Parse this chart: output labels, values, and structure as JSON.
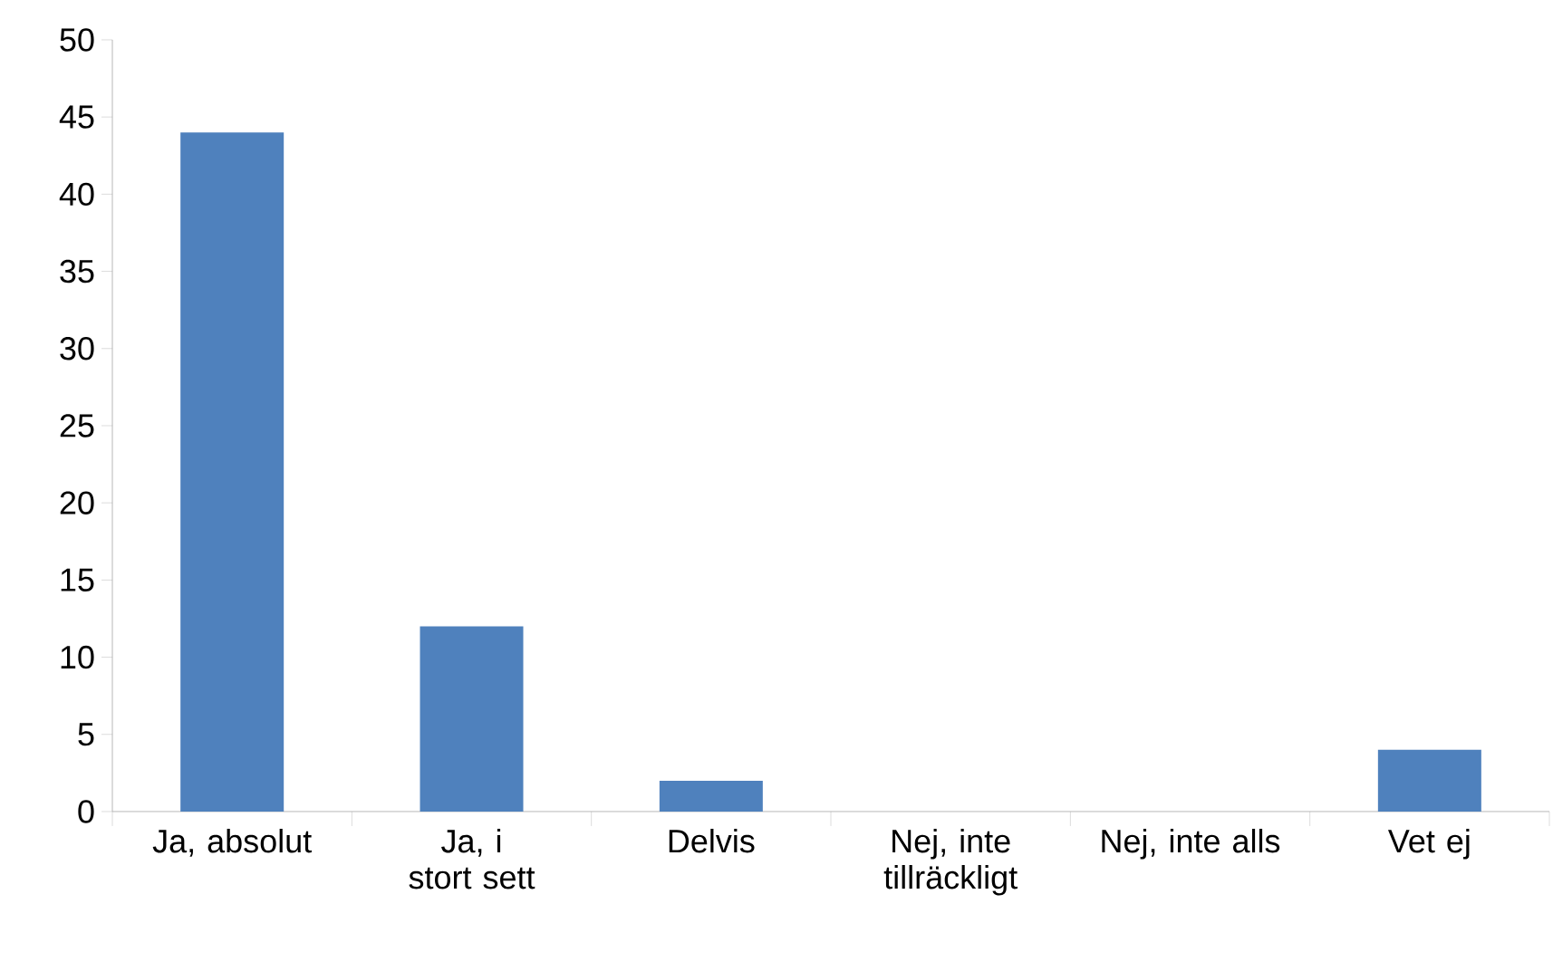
{
  "chart_data": {
    "type": "bar",
    "categories": [
      "Ja, absolut",
      "Ja, i stort sett",
      "Delvis",
      "Nej, inte tillräckligt",
      "Nej, inte alls",
      "Vet ej"
    ],
    "values": [
      44,
      12,
      2,
      0,
      0,
      4
    ],
    "color": "#4f81bd",
    "ylim": [
      0,
      50
    ],
    "yticks": [
      0,
      5,
      10,
      15,
      20,
      25,
      30,
      35,
      40,
      45,
      50
    ],
    "grid": false
  }
}
